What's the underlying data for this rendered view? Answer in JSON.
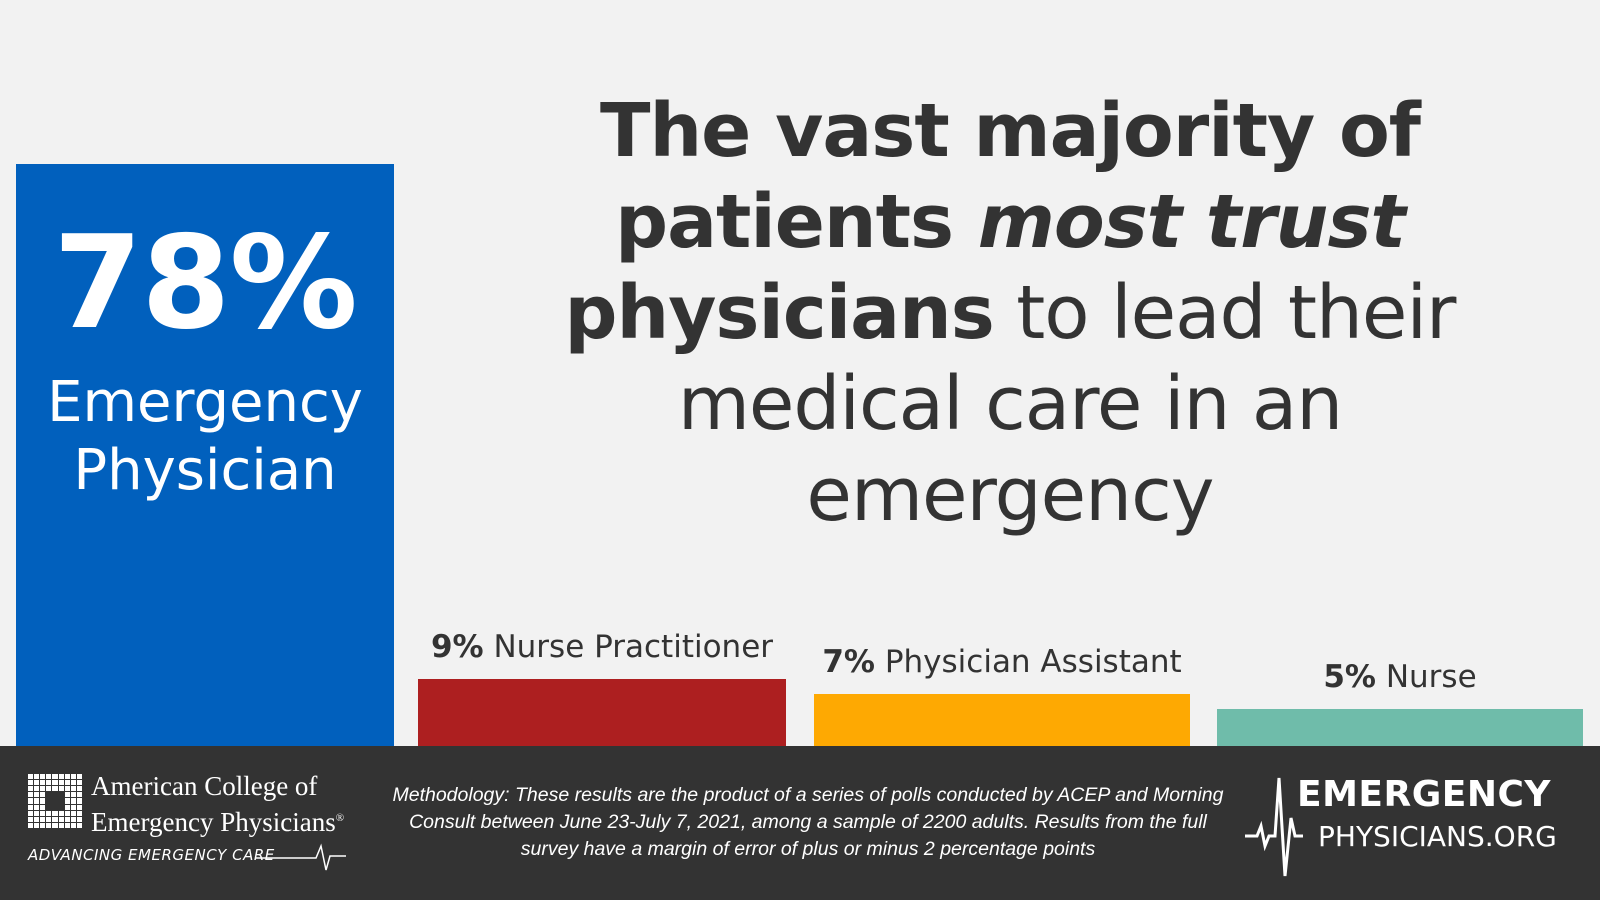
{
  "chart_data": {
    "type": "bar",
    "unit": "%",
    "categories": [
      "Emergency Physician",
      "Nurse Practitioner",
      "Physician Assistant",
      "Nurse"
    ],
    "values": [
      78,
      9,
      7,
      5
    ],
    "colors": [
      "#0160bd",
      "#ad1f20",
      "#fea902",
      "#6fbcaa"
    ],
    "value_labels": [
      "78%",
      "9%",
      "7%",
      "5%"
    ],
    "big_label_lines": [
      "Emergency",
      "Physician"
    ],
    "title": ""
  },
  "headline": {
    "part1": "The vast majority of patients ",
    "part2": "most trust",
    "part3": " physicians",
    "part4": " to lead their medical care in an emergency"
  },
  "footer": {
    "acep_name_line1": "American College of",
    "acep_name_line2": "Emergency Physicians",
    "acep_registered": "®",
    "acep_tagline": "ADVANCING EMERGENCY CARE",
    "methodology": "Methodology: These results are the product of a series of polls conducted by ACEP and Morning Consult between June 23-July 7, 2021, among a sample of 2200 adults. Results from the full survey have a margin of error of plus or minus 2 percentage points",
    "ep_line1": "EMERGENCY",
    "ep_line2": "PHYSICIANS.ORG"
  },
  "colors": {
    "background": "#f2f2f2",
    "footer": "#333333",
    "text": "#333333"
  }
}
